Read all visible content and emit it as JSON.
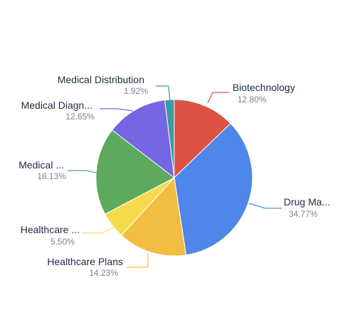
{
  "chart_data": {
    "type": "pie",
    "title": "",
    "slices": [
      {
        "label": "Biotechnology",
        "display_label": "Biotechnology",
        "value": 12.8,
        "value_label": "12.80%",
        "color": "#dd5244"
      },
      {
        "label": "Drug Ma...",
        "display_label": "Drug Ma...",
        "value": 34.77,
        "value_label": "34.77%",
        "color": "#4e86ea"
      },
      {
        "label": "Healthcare Plans",
        "display_label": "Healthcare Plans",
        "value": 14.23,
        "value_label": "14.23%",
        "color": "#f3bd42"
      },
      {
        "label": "Healthcare ...",
        "display_label": "Healthcare ...",
        "value": 5.5,
        "value_label": "5.50%",
        "color": "#f5db4c"
      },
      {
        "label": "Medical ...",
        "display_label": "Medical ...",
        "value": 18.13,
        "value_label": "18.13%",
        "color": "#5da95e"
      },
      {
        "label": "Medical Diagn...",
        "display_label": "Medical Diagn...",
        "value": 12.65,
        "value_label": "12.65%",
        "color": "#7566e3"
      },
      {
        "label": "Medical Distribution",
        "display_label": "Medical Distribution",
        "value": 1.92,
        "value_label": "1.92%",
        "color": "#3e9aa3"
      }
    ]
  }
}
